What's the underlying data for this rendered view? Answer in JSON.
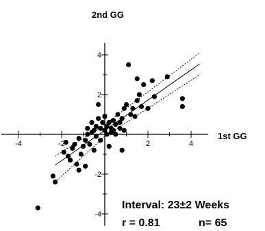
{
  "chart_data": {
    "type": "scatter",
    "x_title": "1st GG",
    "y_title": "2nd GG",
    "xlim": [
      -4.8,
      4.8
    ],
    "ylim": [
      -4.6,
      4.6
    ],
    "x_ticks": [
      -4,
      -2,
      2,
      4
    ],
    "y_ticks": [
      4,
      2,
      -2,
      -4
    ],
    "grid": false,
    "points": [
      [
        -3.1,
        -3.7
      ],
      [
        -2.4,
        -2.1
      ],
      [
        -2.3,
        -2.4
      ],
      [
        -1.9,
        -0.9
      ],
      [
        -1.8,
        -0.4
      ],
      [
        -1.7,
        -1.1
      ],
      [
        -1.6,
        -1.3
      ],
      [
        -1.5,
        -0.7
      ],
      [
        -1.4,
        -0.5
      ],
      [
        -1.3,
        -1.5
      ],
      [
        -1.2,
        -1.8
      ],
      [
        -1.2,
        -0.2
      ],
      [
        -1.1,
        -1.0
      ],
      [
        -1.0,
        -0.6
      ],
      [
        -0.9,
        -0.3
      ],
      [
        -0.9,
        -1.6
      ],
      [
        -0.8,
        0.0
      ],
      [
        -0.8,
        0.3
      ],
      [
        -0.7,
        -0.5
      ],
      [
        -0.6,
        0.1
      ],
      [
        -0.6,
        0.6
      ],
      [
        -0.5,
        -0.8
      ],
      [
        -0.5,
        0.2
      ],
      [
        -0.4,
        0.4
      ],
      [
        -0.4,
        -0.1
      ],
      [
        -0.3,
        0.8
      ],
      [
        -0.3,
        1.5
      ],
      [
        -0.2,
        0.3
      ],
      [
        -0.2,
        -0.3
      ],
      [
        -0.1,
        0.6
      ],
      [
        0.0,
        0.2
      ],
      [
        0.0,
        0.9
      ],
      [
        0.1,
        0.0
      ],
      [
        0.1,
        0.4
      ],
      [
        0.2,
        -0.6
      ],
      [
        0.2,
        0.6
      ],
      [
        0.3,
        0.1
      ],
      [
        0.3,
        0.3
      ],
      [
        0.4,
        0.7
      ],
      [
        0.4,
        0.2
      ],
      [
        0.5,
        0.5
      ],
      [
        0.5,
        0.0
      ],
      [
        0.6,
        1.0
      ],
      [
        0.7,
        0.3
      ],
      [
        0.7,
        0.6
      ],
      [
        0.8,
        -0.8
      ],
      [
        0.8,
        0.8
      ],
      [
        0.9,
        0.2
      ],
      [
        0.9,
        1.3
      ],
      [
        1.0,
        1.5
      ],
      [
        1.1,
        3.5
      ],
      [
        1.2,
        1.0
      ],
      [
        1.3,
        1.3
      ],
      [
        1.4,
        0.9
      ],
      [
        1.5,
        2.8
      ],
      [
        1.5,
        1.7
      ],
      [
        1.6,
        2.0
      ],
      [
        1.7,
        1.4
      ],
      [
        1.8,
        2.5
      ],
      [
        2.0,
        1.3
      ],
      [
        2.2,
        2.7
      ],
      [
        2.3,
        1.9
      ],
      [
        2.9,
        2.9
      ],
      [
        3.6,
        1.8
      ],
      [
        3.6,
        1.4
      ]
    ],
    "regression": {
      "slope": 0.76,
      "intercept": 0.2,
      "x_range": [
        -2.3,
        4.4
      ]
    },
    "confidence": {
      "upper": [
        [
          -2.3,
          -1.1
        ],
        [
          0,
          0.5
        ],
        [
          4.4,
          4.1
        ]
      ],
      "lower": [
        [
          -2.3,
          -2.4
        ],
        [
          0,
          -0.1
        ],
        [
          4.4,
          3.0
        ]
      ]
    },
    "annotations": {
      "interval": "Interval:  23±2 Weeks",
      "r": "r  =  0.81",
      "n": "n= 65"
    }
  }
}
